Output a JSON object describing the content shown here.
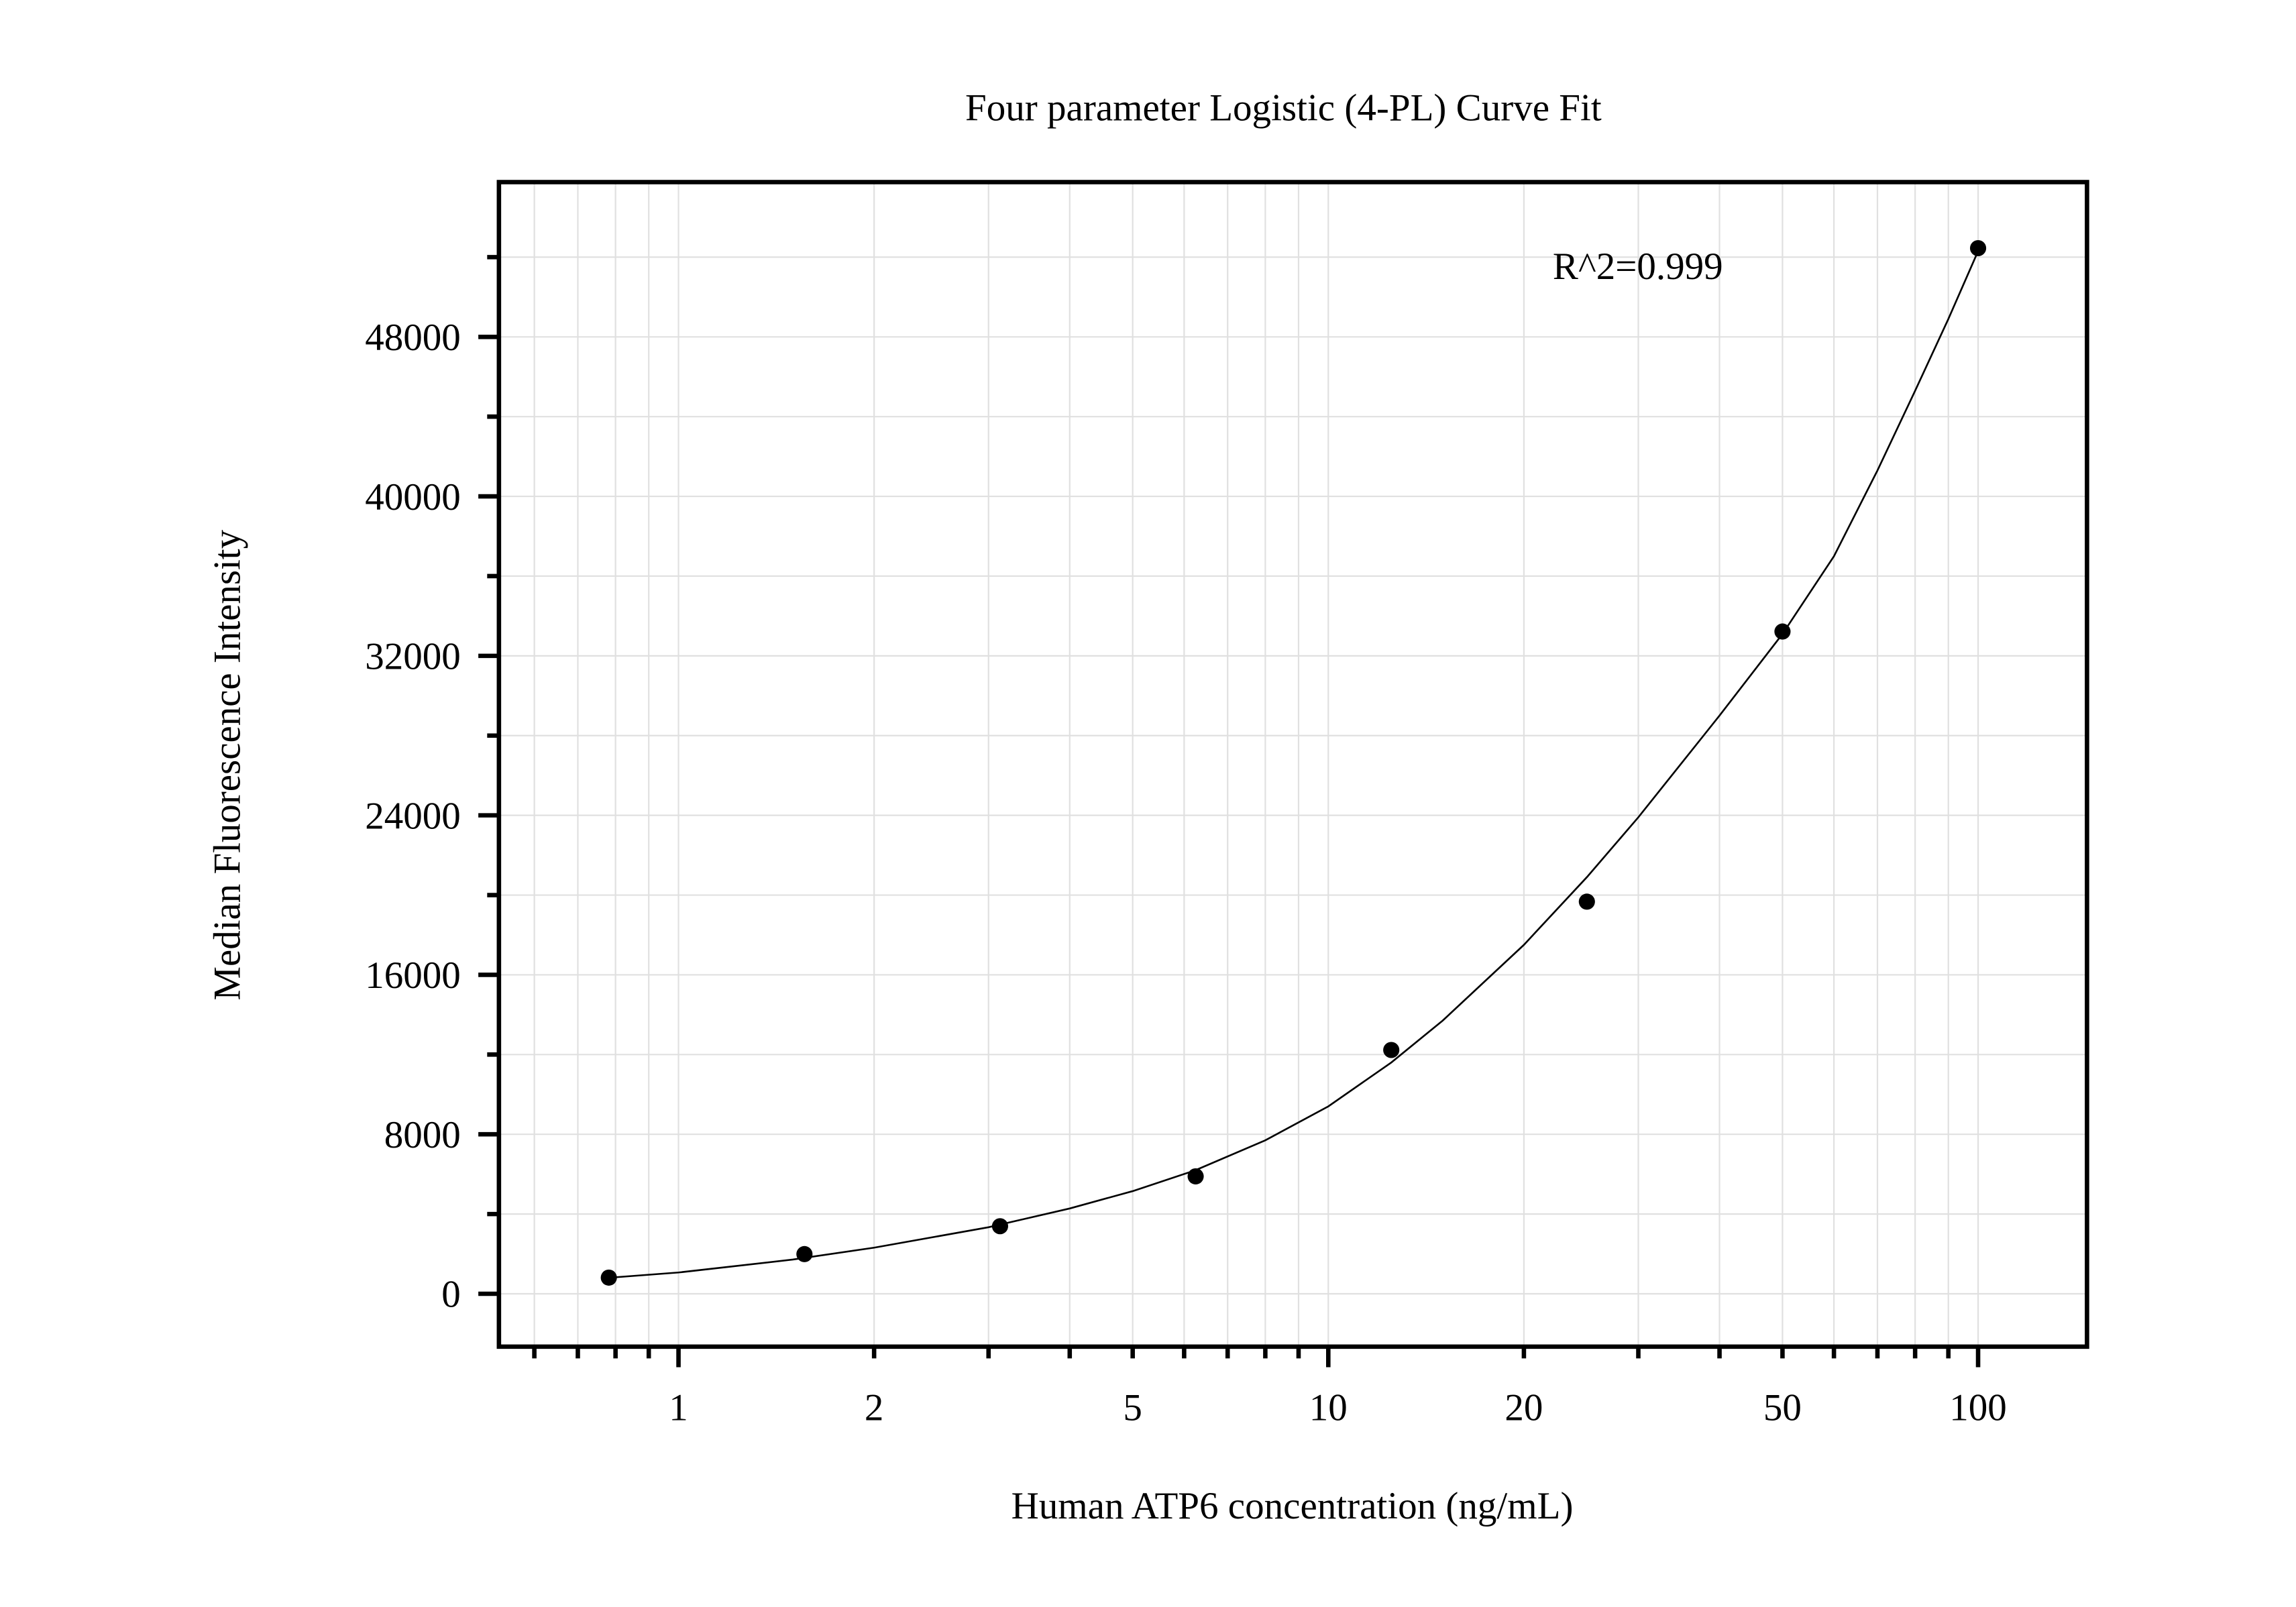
{
  "chart_data": {
    "type": "scatter",
    "title": "Four parameter Logistic (4-PL) Curve Fit",
    "xlabel": "Human ATP6 concentration (ng/mL)",
    "ylabel": "Median Fluorescence Intensity",
    "x_scale": "log",
    "xlim": [
      0.53,
      148
    ],
    "ylim": [
      -2650,
      55800
    ],
    "grid": true,
    "legend": null,
    "x_ticks": [
      {
        "value": 1,
        "label": "1"
      },
      {
        "value": 2,
        "label": "2"
      },
      {
        "value": 5,
        "label": "5"
      },
      {
        "value": 10,
        "label": "10"
      },
      {
        "value": 20,
        "label": "20"
      },
      {
        "value": 50,
        "label": "50"
      },
      {
        "value": 100,
        "label": "100"
      }
    ],
    "y_ticks": [
      {
        "value": 0,
        "label": "0"
      },
      {
        "value": 8000,
        "label": "8000"
      },
      {
        "value": 16000,
        "label": "16000"
      },
      {
        "value": 24000,
        "label": "24000"
      },
      {
        "value": 32000,
        "label": "32000"
      },
      {
        "value": 40000,
        "label": "40000"
      },
      {
        "value": 48000,
        "label": "48000"
      }
    ],
    "y_minor_step": 4000,
    "series": [
      {
        "name": "Standards",
        "kind": "points",
        "x": [
          0.78125,
          1.5625,
          3.125,
          6.25,
          12.5,
          25,
          50,
          100
        ],
        "y": [
          810,
          1990,
          3390,
          5890,
          12230,
          19670,
          33220,
          52450
        ]
      },
      {
        "name": "4-PL fit",
        "kind": "line",
        "x": [
          0.78,
          1,
          1.5,
          2,
          3,
          4,
          5,
          6.25,
          8,
          10,
          12.5,
          15,
          20,
          25,
          30,
          40,
          50,
          60,
          70,
          80,
          90,
          100
        ],
        "y": [
          800,
          1070,
          1720,
          2310,
          3340,
          4280,
          5150,
          6200,
          7700,
          9400,
          11600,
          13700,
          17500,
          20900,
          23900,
          29000,
          33100,
          37000,
          41300,
          45300,
          48900,
          52300
        ]
      }
    ],
    "annotations": [
      {
        "text": "R^2=0.999",
        "x": 22,
        "y": 51500
      }
    ]
  }
}
